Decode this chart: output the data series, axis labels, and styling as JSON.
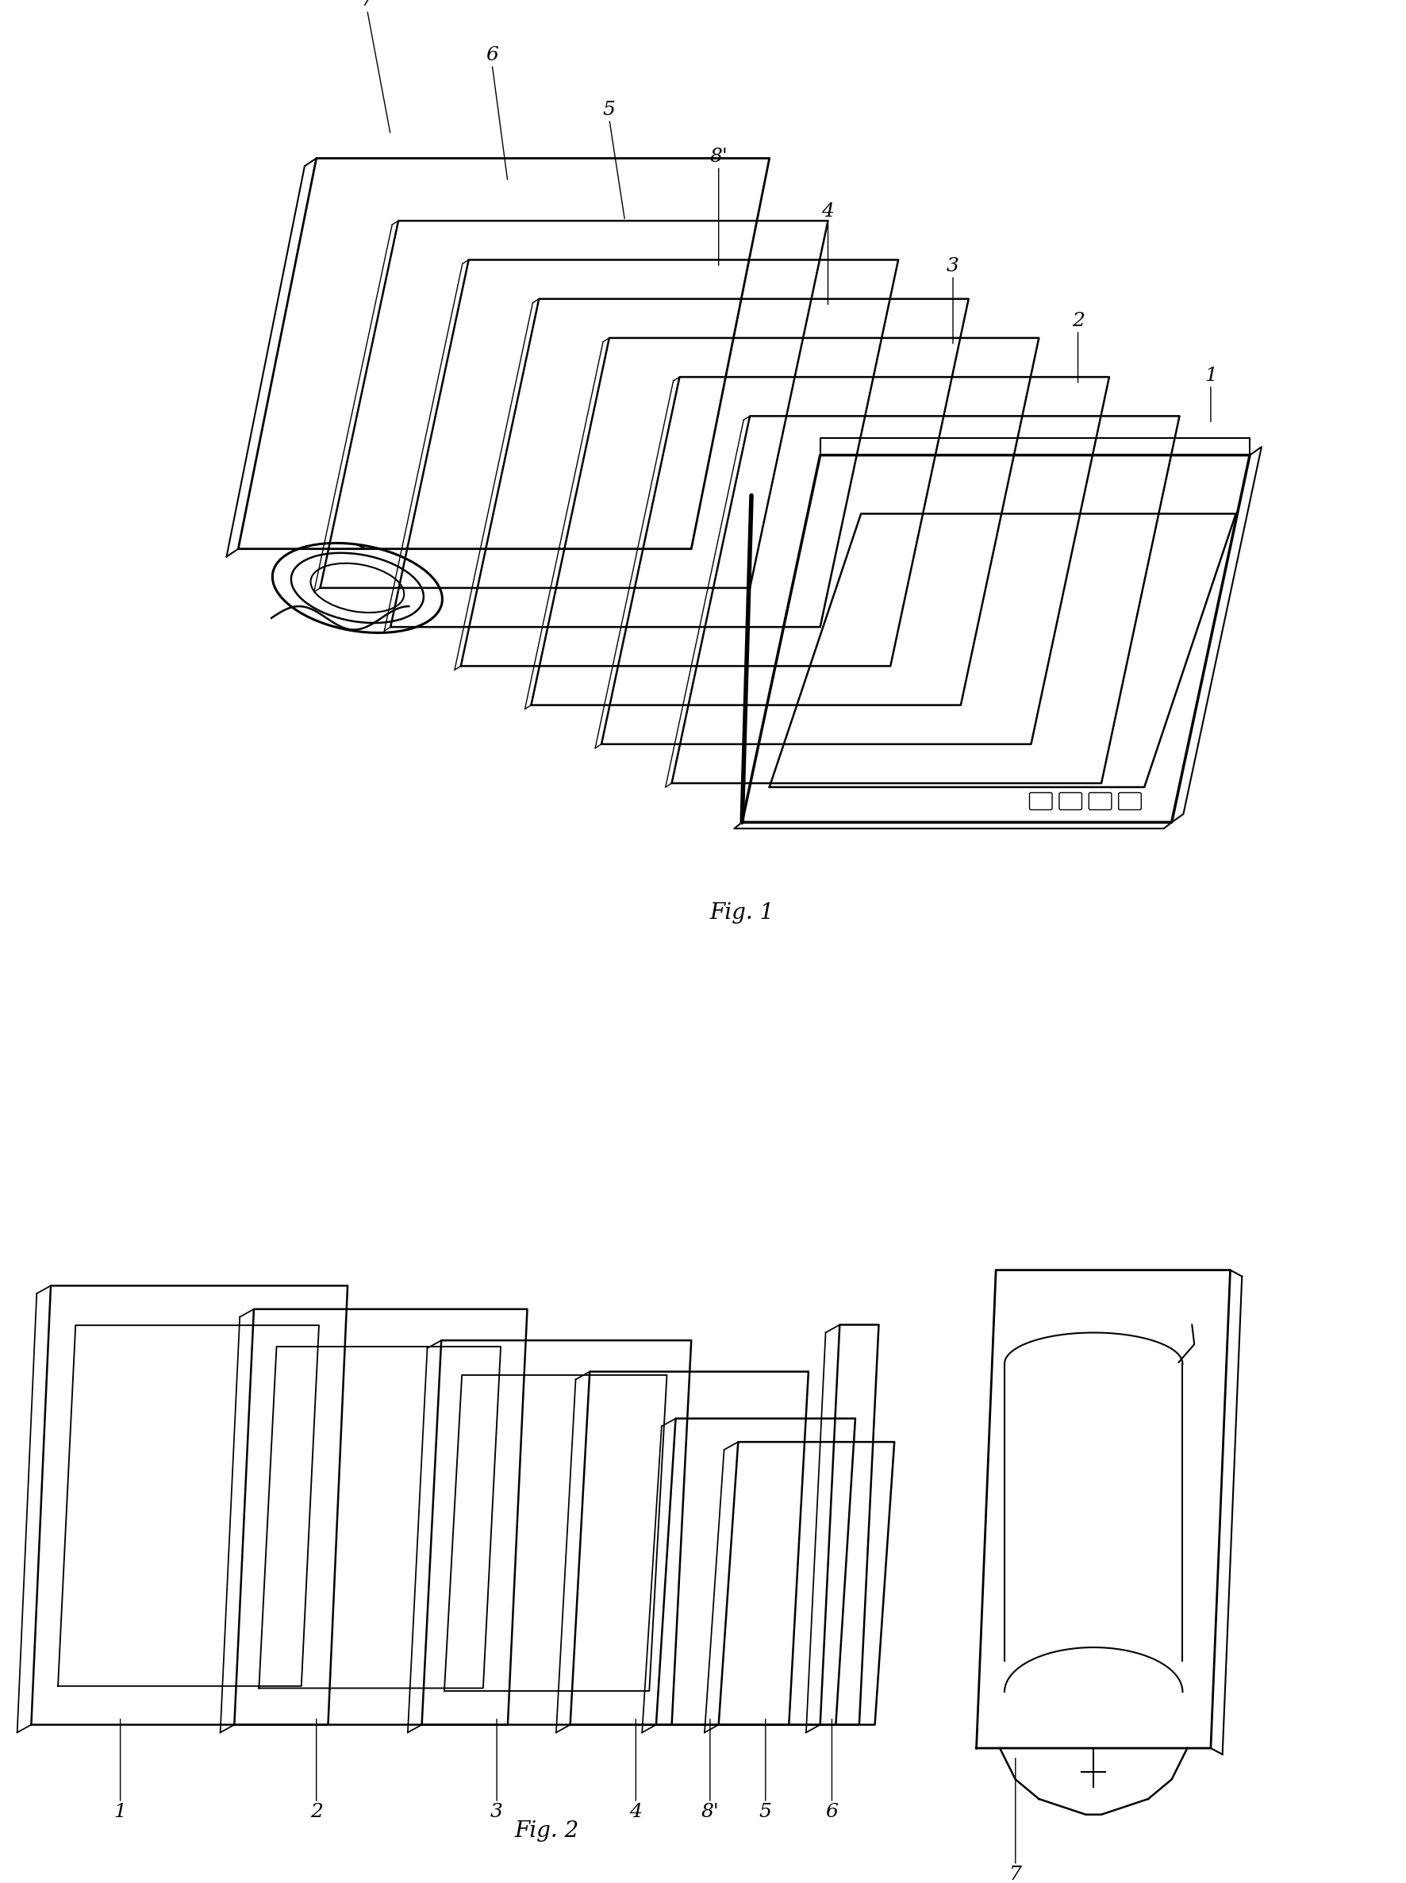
{
  "background_color": "#ffffff",
  "line_color": "#000000",
  "fig1_caption": "Fig. 1",
  "fig2_caption": "Fig. 2",
  "label_fontsize": 18,
  "caption_fontsize": 20
}
